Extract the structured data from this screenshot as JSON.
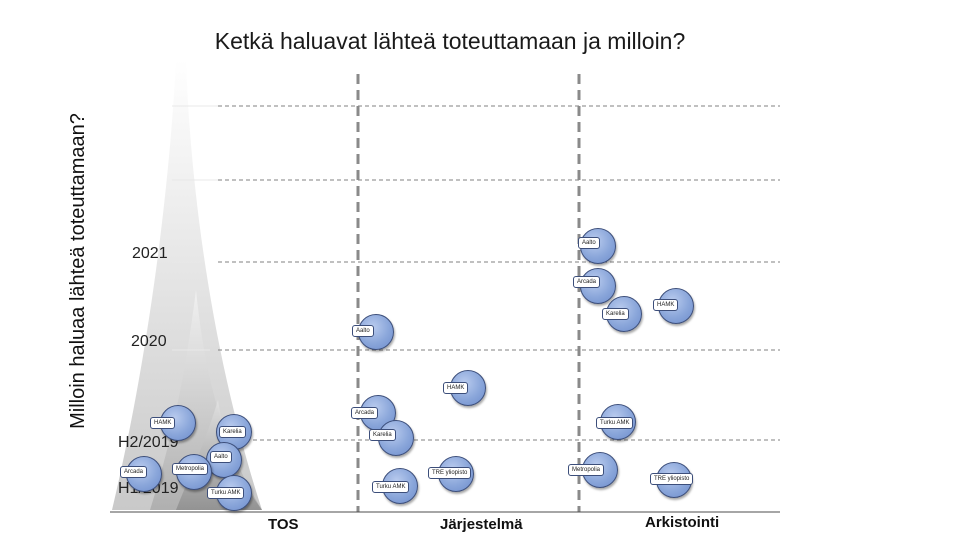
{
  "title": "Ketkä haluavat lähteä toteuttamaan ja milloin?",
  "y_axis_label": "Milloin haluaa lähteä toteuttamaan?",
  "time_labels": {
    "y2021": "2021",
    "y2020": "2020",
    "h2_2019": "H2/2019",
    "h1_2019": "H1/2019"
  },
  "columns": {
    "tos": "TOS",
    "jarjestelma": "Järjestelmä",
    "arkistointi": "Arkistointi"
  },
  "nodes": {
    "aalto_1": "Aalto",
    "arcada_1": "Arcada",
    "hamk_1": "HAMK",
    "karelia_1": "Karelia",
    "aalto_2": "Aalto",
    "hamk_2": "HAMK",
    "arcada_2": "Arcada",
    "karelia_2": "Karelia",
    "turkuamk_1": "Turku AMK",
    "hamk_3": "HAMK",
    "karelia_3": "Karelia",
    "aalto_3": "Aalto",
    "arcada_3": "Arcada",
    "metropolia_1": "Metropolia",
    "turkuamk_2": "Turku AMK",
    "tre_1": "TRE yliopisto",
    "turkuamk_3": "Turku AMK",
    "metropolia_2": "Metropolia",
    "tre_2": "TRE yliopisto"
  },
  "colors": {
    "node_fill": "#8aa6da",
    "node_border": "#3c4e7a",
    "guide_line": "#808080"
  }
}
